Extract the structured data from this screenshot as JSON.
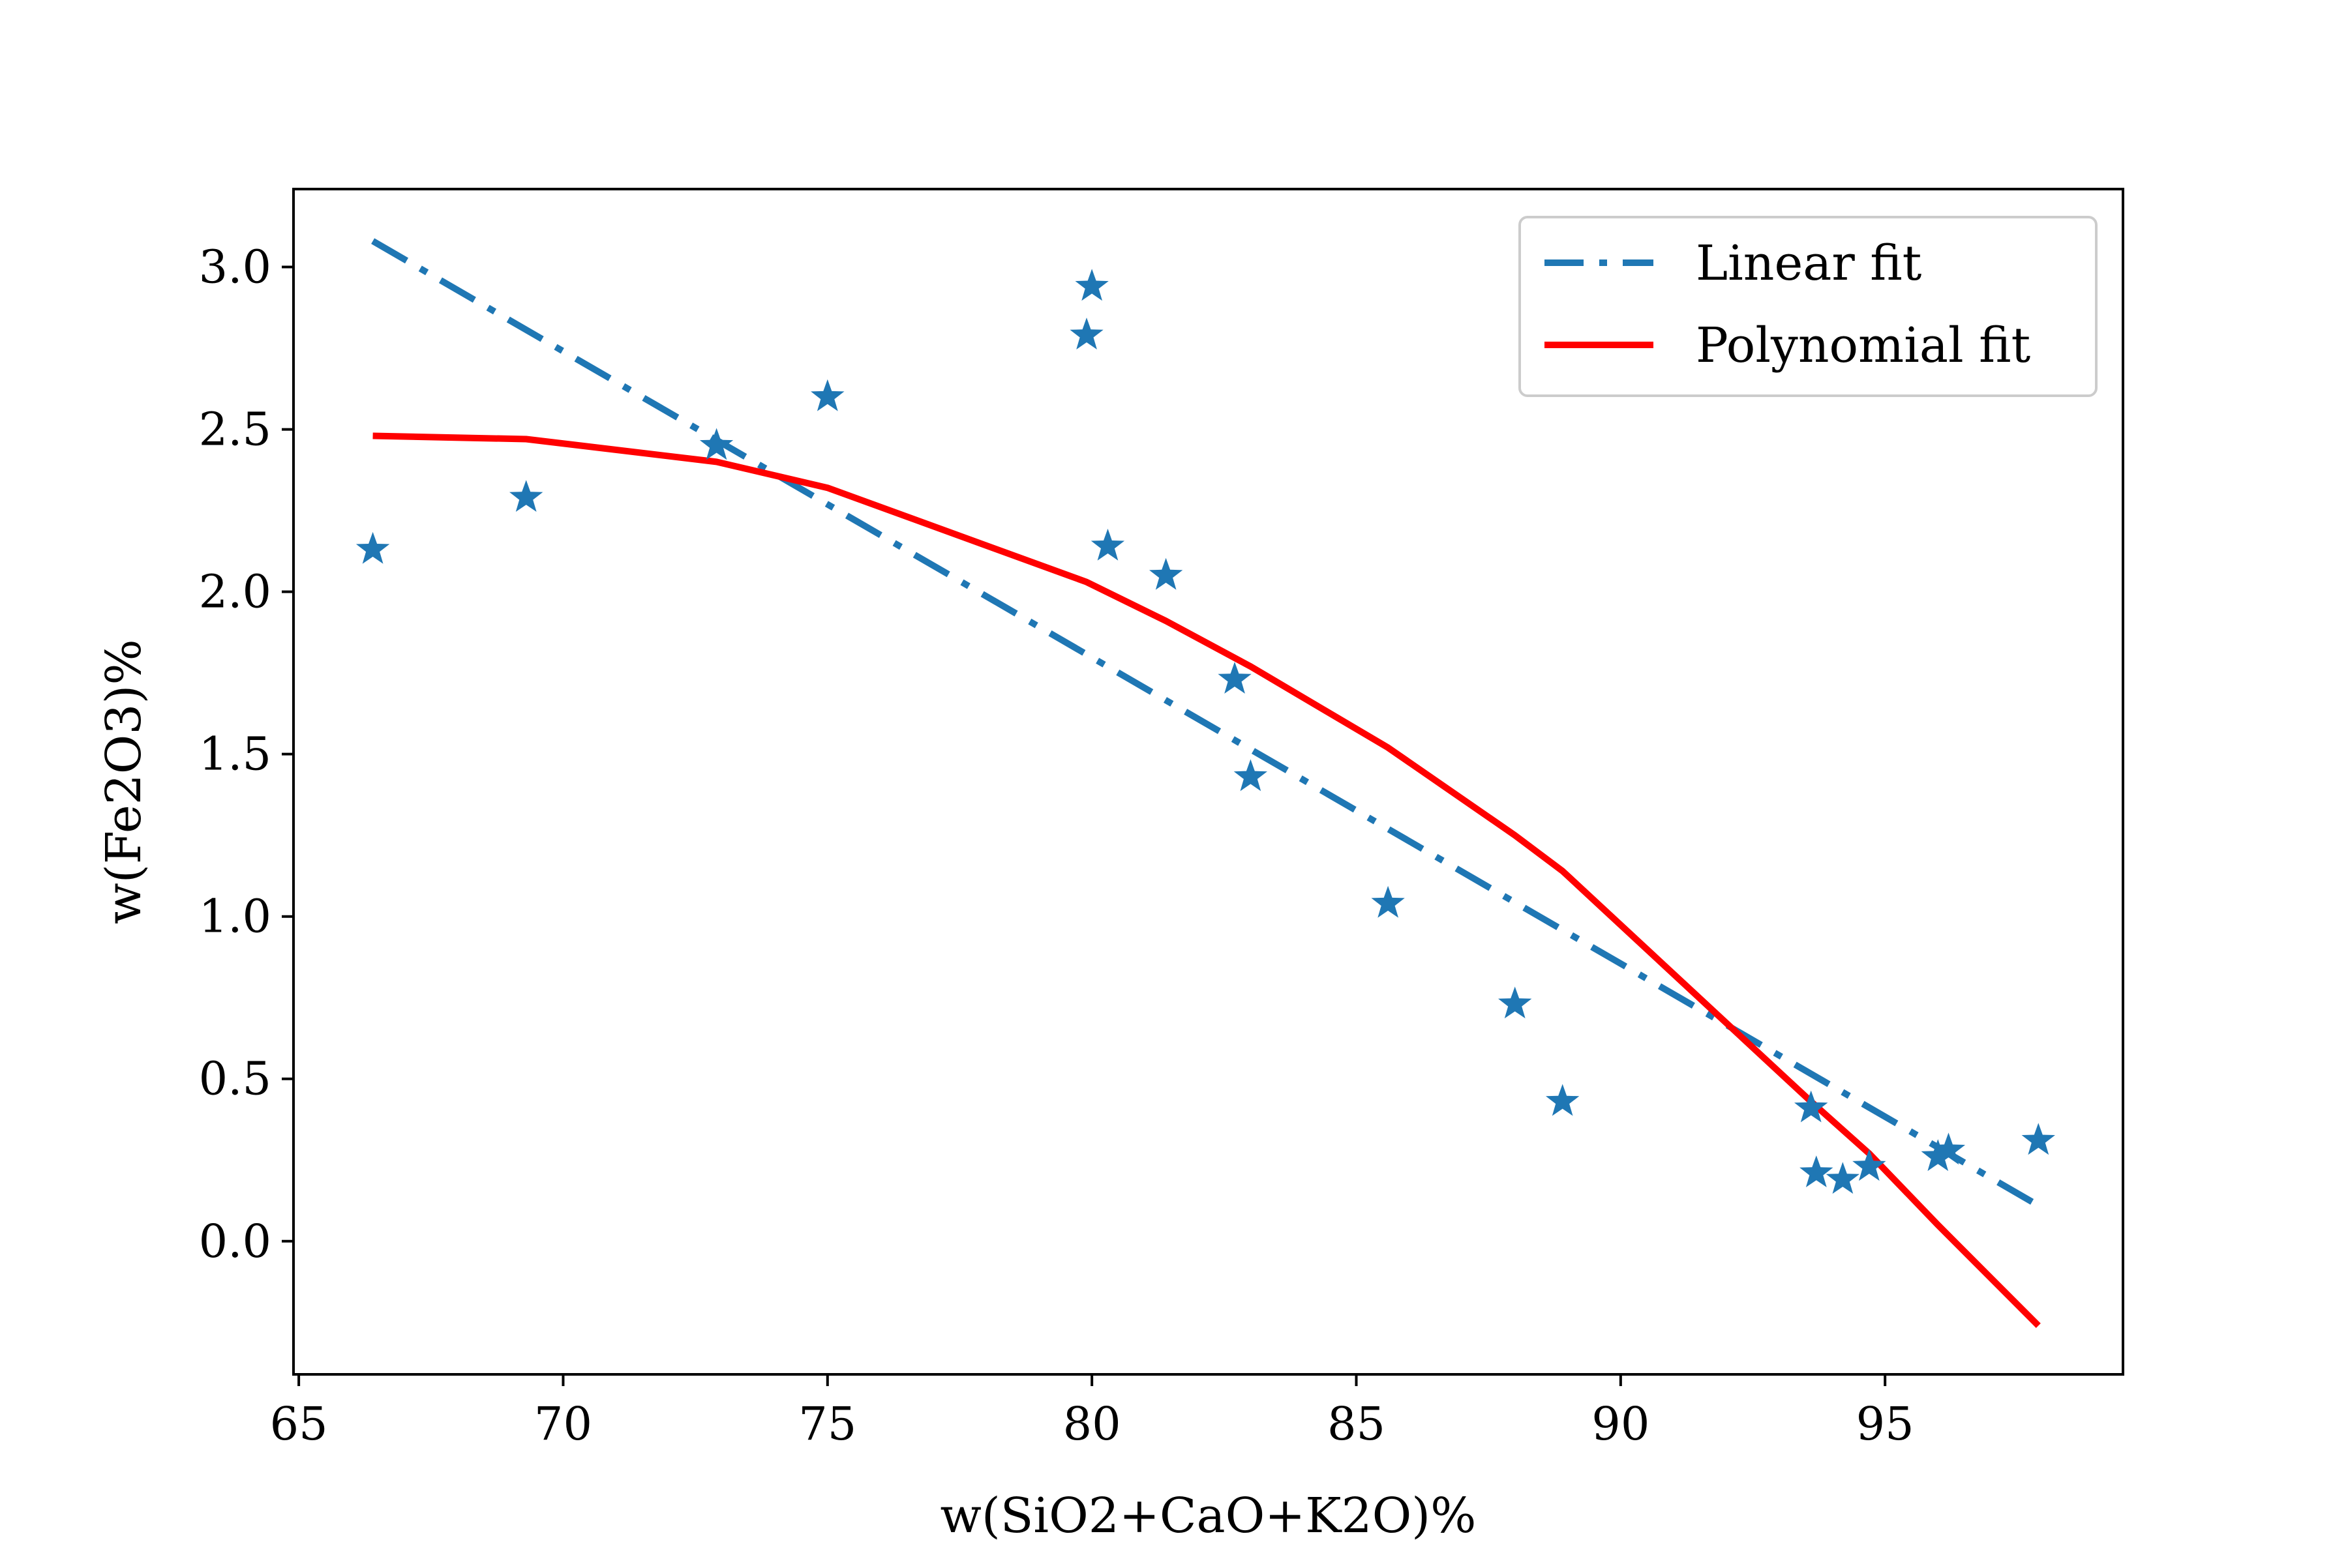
{
  "chart_data": {
    "type": "scatter",
    "title": "",
    "xlabel": "w(SiO2+CaO+K2O)%",
    "ylabel": "w(Fe2O3)%",
    "xlim": [
      64.9,
      99.5
    ],
    "ylim": [
      -0.41,
      3.24
    ],
    "xticks": [
      65,
      70,
      75,
      80,
      85,
      90,
      95
    ],
    "yticks": [
      0.0,
      0.5,
      1.0,
      1.5,
      2.0,
      2.5,
      3.0
    ],
    "grid": false,
    "legend_position": "top-right",
    "series": [
      {
        "kind": "scatter",
        "marker": "star",
        "color": "#1f77b4",
        "points": [
          [
            66.4,
            2.13
          ],
          [
            69.3,
            2.29
          ],
          [
            72.9,
            2.45
          ],
          [
            75.0,
            2.6
          ],
          [
            79.9,
            2.79
          ],
          [
            80.0,
            2.94
          ],
          [
            80.3,
            2.14
          ],
          [
            81.4,
            2.05
          ],
          [
            82.7,
            1.73
          ],
          [
            83.0,
            1.43
          ],
          [
            85.6,
            1.04
          ],
          [
            88.0,
            0.73
          ],
          [
            88.9,
            0.43
          ],
          [
            93.6,
            0.41
          ],
          [
            93.7,
            0.21
          ],
          [
            94.2,
            0.19
          ],
          [
            94.7,
            0.23
          ],
          [
            96.0,
            0.26
          ],
          [
            96.2,
            0.28
          ],
          [
            97.9,
            0.31
          ]
        ]
      },
      {
        "kind": "line",
        "name": "Linear fit",
        "style": "dashdot",
        "color": "#1f77b4",
        "x": [
          66.4,
          97.9
        ],
        "y": [
          3.08,
          0.11
        ]
      },
      {
        "kind": "line",
        "name": "Polynomial fit",
        "style": "solid",
        "color": "#ff0000",
        "x": [
          66.4,
          69.3,
          72.9,
          75.0,
          79.9,
          81.4,
          83.0,
          85.6,
          88.0,
          88.9,
          93.6,
          94.7,
          96.0,
          97.9
        ],
        "y": [
          2.48,
          2.47,
          2.4,
          2.32,
          2.03,
          1.91,
          1.77,
          1.52,
          1.25,
          1.14,
          0.43,
          0.27,
          0.05,
          -0.26
        ]
      }
    ]
  }
}
